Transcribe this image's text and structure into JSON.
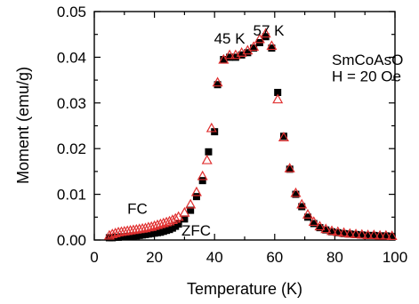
{
  "chart_data": {
    "type": "scatter",
    "xlabel": "Temperature (K)",
    "ylabel": "Moment (emu/g)",
    "xlim": [
      0,
      100
    ],
    "ylim": [
      0,
      0.05
    ],
    "x_ticks": [
      0,
      20,
      40,
      60,
      80,
      100
    ],
    "y_ticks": [
      0.0,
      0.01,
      0.02,
      0.03,
      0.04,
      0.05
    ],
    "x_tick_labels": [
      "0",
      "20",
      "40",
      "60",
      "80",
      "100"
    ],
    "y_tick_labels": [
      "0.00",
      "0.01",
      "0.02",
      "0.03",
      "0.04",
      "0.05"
    ],
    "grid": false,
    "annotations": [
      {
        "text": "45 K",
        "x": 45,
        "y": 0.043
      },
      {
        "text": "57 K",
        "x": 58,
        "y": 0.0447
      },
      {
        "text": "SmCoAsO",
        "x": 79,
        "y": 0.0383
      },
      {
        "text": "H = 20 Oe",
        "x": 79,
        "y": 0.0347
      },
      {
        "text": "FC",
        "x": 11,
        "y": 0.0057
      },
      {
        "text": "ZFC",
        "x": 29,
        "y": 0.001
      }
    ],
    "series": [
      {
        "name": "ZFC",
        "marker": "filled-square",
        "color": "#000000",
        "points": [
          [
            5,
            0.0005
          ],
          [
            6,
            0.0005
          ],
          [
            7,
            0.0006
          ],
          [
            8,
            0.0006
          ],
          [
            9,
            0.0007
          ],
          [
            10,
            0.0007
          ],
          [
            11,
            0.0008
          ],
          [
            12,
            0.0008
          ],
          [
            13,
            0.0009
          ],
          [
            14,
            0.0009
          ],
          [
            15,
            0.001
          ],
          [
            16,
            0.0011
          ],
          [
            17,
            0.0012
          ],
          [
            18,
            0.0013
          ],
          [
            19,
            0.0014
          ],
          [
            20,
            0.0015
          ],
          [
            21,
            0.0016
          ],
          [
            22,
            0.0017
          ],
          [
            23,
            0.0019
          ],
          [
            24,
            0.0021
          ],
          [
            25,
            0.0023
          ],
          [
            26,
            0.0026
          ],
          [
            27,
            0.003
          ],
          [
            28,
            0.0035
          ],
          [
            30,
            0.0046
          ],
          [
            32,
            0.0065
          ],
          [
            34,
            0.0095
          ],
          [
            36,
            0.013
          ],
          [
            38,
            0.0193
          ],
          [
            40,
            0.0237
          ],
          [
            41,
            0.034
          ],
          [
            43,
            0.0395
          ],
          [
            45,
            0.04
          ],
          [
            47,
            0.04
          ],
          [
            49,
            0.0405
          ],
          [
            51,
            0.041
          ],
          [
            53,
            0.042
          ],
          [
            55,
            0.0432
          ],
          [
            57,
            0.0445
          ],
          [
            59,
            0.042
          ],
          [
            61,
            0.0323
          ],
          [
            63,
            0.0227
          ],
          [
            65,
            0.0155
          ],
          [
            67,
            0.01
          ],
          [
            69,
            0.0073
          ],
          [
            71,
            0.005
          ],
          [
            73,
            0.0036
          ],
          [
            75,
            0.0027
          ],
          [
            77,
            0.0022
          ],
          [
            79,
            0.0018
          ],
          [
            81,
            0.0016
          ],
          [
            83,
            0.0014
          ],
          [
            85,
            0.0013
          ],
          [
            87,
            0.0012
          ],
          [
            89,
            0.0011
          ],
          [
            91,
            0.001
          ],
          [
            93,
            0.001
          ],
          [
            95,
            0.0009
          ],
          [
            97,
            0.0009
          ],
          [
            99,
            0.0008
          ]
        ]
      },
      {
        "name": "FC",
        "marker": "open-triangle",
        "color": "#e03030",
        "points": [
          [
            5,
            0.001
          ],
          [
            6,
            0.0013
          ],
          [
            7,
            0.0015
          ],
          [
            8,
            0.0017
          ],
          [
            9,
            0.0018
          ],
          [
            10,
            0.0019
          ],
          [
            11,
            0.002
          ],
          [
            12,
            0.0021
          ],
          [
            13,
            0.0022
          ],
          [
            14,
            0.0023
          ],
          [
            15,
            0.0024
          ],
          [
            16,
            0.0025
          ],
          [
            17,
            0.0026
          ],
          [
            18,
            0.0028
          ],
          [
            19,
            0.0029
          ],
          [
            20,
            0.0031
          ],
          [
            21,
            0.0033
          ],
          [
            22,
            0.0035
          ],
          [
            23,
            0.0037
          ],
          [
            24,
            0.0039
          ],
          [
            25,
            0.0041
          ],
          [
            26,
            0.0044
          ],
          [
            27,
            0.0047
          ],
          [
            28,
            0.0051
          ],
          [
            30,
            0.006
          ],
          [
            32,
            0.0078
          ],
          [
            34,
            0.0105
          ],
          [
            36,
            0.014
          ],
          [
            37.5,
            0.0175
          ],
          [
            39,
            0.0245
          ],
          [
            41,
            0.0345
          ],
          [
            43,
            0.0395
          ],
          [
            45,
            0.0405
          ],
          [
            47,
            0.0405
          ],
          [
            49,
            0.041
          ],
          [
            51,
            0.0415
          ],
          [
            53,
            0.0423
          ],
          [
            55,
            0.044
          ],
          [
            57,
            0.0452
          ],
          [
            59,
            0.0425
          ],
          [
            61,
            0.0308
          ],
          [
            63,
            0.0225
          ],
          [
            65,
            0.0157
          ],
          [
            67,
            0.0103
          ],
          [
            69,
            0.0078
          ],
          [
            71,
            0.0056
          ],
          [
            73,
            0.004
          ],
          [
            75,
            0.003
          ],
          [
            77,
            0.0024
          ],
          [
            79,
            0.002
          ],
          [
            81,
            0.0018
          ],
          [
            83,
            0.0016
          ],
          [
            85,
            0.0014
          ],
          [
            87,
            0.0013
          ],
          [
            89,
            0.0012
          ],
          [
            91,
            0.0011
          ],
          [
            93,
            0.0011
          ],
          [
            95,
            0.001
          ],
          [
            97,
            0.001
          ],
          [
            99,
            0.0009
          ]
        ]
      }
    ]
  }
}
